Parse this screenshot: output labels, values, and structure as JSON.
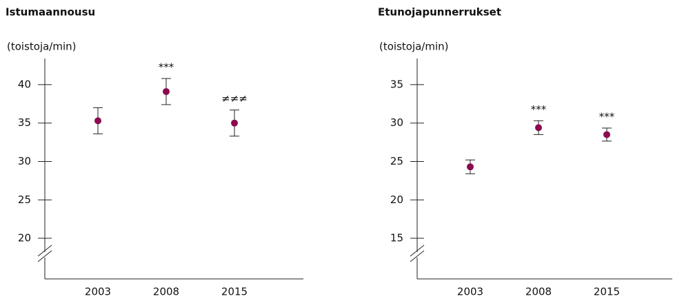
{
  "chart_data": [
    {
      "type": "errorbar",
      "title": "Istumaannousu",
      "ylabel": "(toistoja/min)",
      "categories": [
        "2003",
        "2008",
        "2015"
      ],
      "values": [
        35.3,
        39.1,
        35.0
      ],
      "errors": [
        1.7,
        1.7,
        1.7
      ],
      "annotations": [
        null,
        "***",
        "≠≠≠"
      ],
      "color": "#8b0a50",
      "ylim": [
        17,
        43.4
      ],
      "yticks": [
        20,
        25,
        30,
        35,
        40
      ]
    },
    {
      "type": "errorbar",
      "title": "Etunojapunnerrukset",
      "ylabel": "(toistoja/min)",
      "categories": [
        "2003",
        "2008",
        "2015"
      ],
      "values": [
        24.3,
        29.4,
        28.5
      ],
      "errors": [
        0.9,
        0.9,
        0.85
      ],
      "annotations": [
        null,
        "***",
        "***"
      ],
      "color": "#8b0a50",
      "ylim": [
        12,
        38.4
      ],
      "yticks": [
        15,
        20,
        25,
        30,
        35
      ]
    }
  ]
}
